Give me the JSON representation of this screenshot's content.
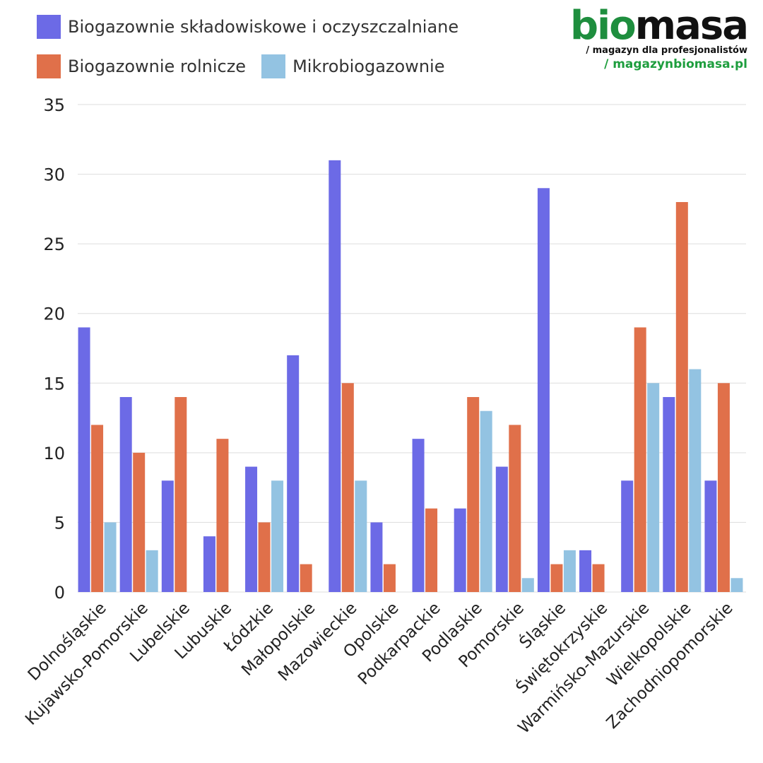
{
  "brand": {
    "logo_bio": "bio",
    "logo_masa": "masa",
    "tagline": "/ magazyn dla profesjonalistów",
    "url": "/ magazynbiomasa.pl"
  },
  "chart_data": {
    "type": "bar",
    "categories": [
      "Dolnośląskie",
      "Kujawsko-Pomorskie",
      "Lubelskie",
      "Lubuskie",
      "Łódzkie",
      "Małopolskie",
      "Mazowieckie",
      "Opolskie",
      "Podkarpackie",
      "Podlaskie",
      "Pomorskie",
      "Śląskie",
      "Świętokrzyskie",
      "Warmińsko-Mazurskie",
      "Wielkopolskie",
      "Zachodniopomorskie"
    ],
    "series": [
      {
        "name": "Biogazownie składowiskowe i oczyszczalniane",
        "color": "#6c6ae6",
        "values": [
          19,
          14,
          8,
          4,
          9,
          17,
          31,
          5,
          11,
          6,
          9,
          29,
          3,
          8,
          14,
          8
        ]
      },
      {
        "name": "Biogazownie rolnicze",
        "color": "#e0704a",
        "values": [
          12,
          10,
          14,
          11,
          5,
          2,
          15,
          2,
          6,
          14,
          12,
          2,
          2,
          19,
          28,
          15
        ]
      },
      {
        "name": "Mikrobiogazownie",
        "color": "#93c3e2",
        "values": [
          5,
          3,
          0,
          0,
          8,
          0,
          8,
          0,
          0,
          13,
          1,
          3,
          0,
          15,
          16,
          1
        ]
      }
    ],
    "ylim": [
      0,
      35
    ],
    "yticks": [
      0,
      5,
      10,
      15,
      20,
      25,
      30,
      35
    ],
    "grid": true,
    "legend": "top-left"
  }
}
